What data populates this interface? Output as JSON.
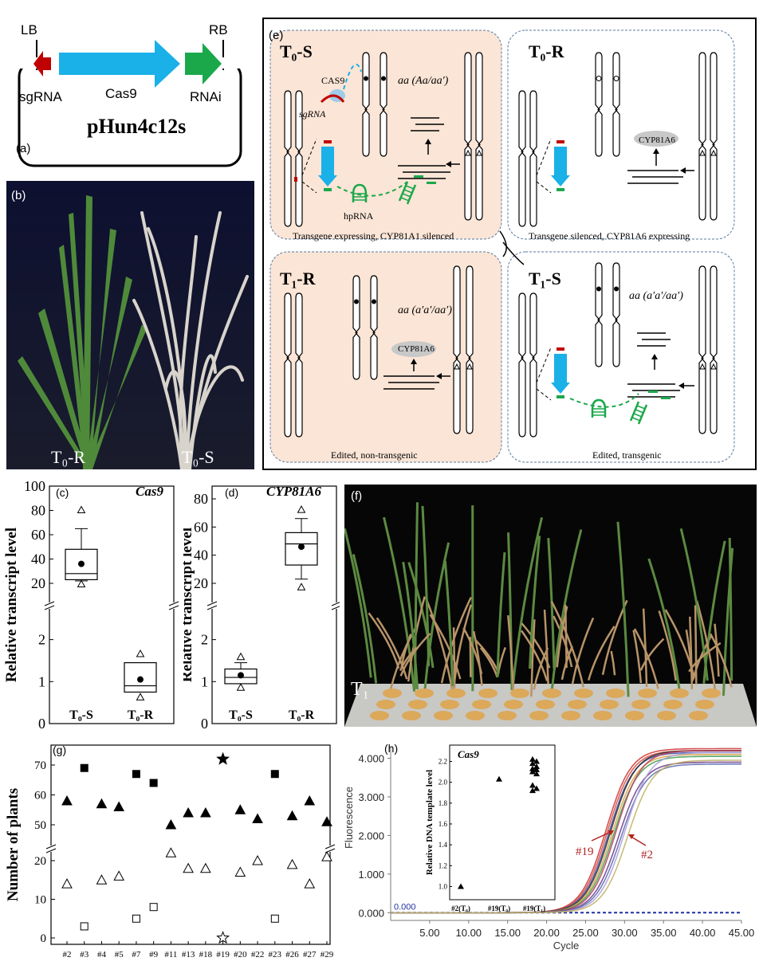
{
  "panel_a": {
    "label": "(a)",
    "lb": "LB",
    "rb": "RB",
    "sgrna": "sgRNA",
    "cas9": "Cas9",
    "rnai": "RNAi",
    "plasmid": "pHun4c12s",
    "colors": {
      "sgrna": "#c00000",
      "cas9": "#1ab0e8",
      "rnai": "#1aa84a"
    }
  },
  "panel_b": {
    "label": "(b)",
    "left_tag": "T₀-R",
    "right_tag": "T₀-S"
  },
  "panel_e": {
    "label": "(e)",
    "t0s": {
      "title": "T₀-S",
      "cas9": "CAS9",
      "sgrna": "sgRNA",
      "hprna": "hpRNA",
      "genotype": "aa (Aa/aa′)",
      "caption": "Transgene expressing, CYP81A1 silenced"
    },
    "t0r": {
      "title": "T₀-R",
      "protein": "CYP81A6",
      "caption": "Transgene silenced, CYP81A6 expressing"
    },
    "t1r": {
      "title": "T₁-R",
      "genotype": "aa (a′a′/aa′)",
      "protein": "CYP81A6",
      "caption": "Edited, non-transgenic"
    },
    "t1s": {
      "title": "T₁-S",
      "genotype": "aa (a′a′/aa′)",
      "caption": "Edited, transgenic"
    }
  },
  "panel_c": {
    "label": "(c)",
    "gene": "Cas9"
  },
  "panel_d": {
    "label": "(d)",
    "gene": "CYP81A6"
  },
  "panel_f": {
    "label": "(f)",
    "tag": "T₁"
  },
  "panel_g": {
    "label": "(g)"
  },
  "panel_h": {
    "label": "(h)",
    "inset_gene": "Cas9",
    "marker_a": "#19",
    "marker_b": "#2"
  },
  "chart_data": [
    {
      "id": "c",
      "type": "box",
      "title": "Cas9",
      "ylabel": "Relative transcript level",
      "categories": [
        "T₀-S",
        "T₀-R"
      ],
      "y_upper_ticks": [
        20,
        40,
        60,
        80,
        100
      ],
      "y_lower_ticks": [
        0,
        1,
        2
      ],
      "series": [
        {
          "category": "T₀-S",
          "q1": 23,
          "median": 28,
          "q3": 48,
          "whisker_low": 22,
          "whisker_high": 65,
          "mean": 36,
          "outliers": [
            80,
            19
          ]
        },
        {
          "category": "T₀-R",
          "q1": 0.75,
          "median": 0.9,
          "q3": 1.45,
          "whisker_low": 0.75,
          "whisker_high": 1.45,
          "mean": 1.05,
          "outliers": [
            1.65,
            0.62
          ]
        }
      ]
    },
    {
      "id": "d",
      "type": "box",
      "title": "CYP81A6",
      "ylabel": "Relative transcript level",
      "categories": [
        "T₀-S",
        "T₀-R"
      ],
      "y_upper_ticks": [
        20,
        40,
        60,
        80
      ],
      "y_lower_ticks": [
        0,
        1,
        2
      ],
      "series": [
        {
          "category": "T₀-S",
          "q1": 0.95,
          "median": 1.1,
          "q3": 1.3,
          "whisker_low": 0.95,
          "whisker_high": 1.45,
          "mean": 1.15,
          "outliers": [
            1.58,
            0.85
          ]
        },
        {
          "category": "T₀-R",
          "q1": 33,
          "median": 48,
          "q3": 56,
          "whisker_low": 23,
          "whisker_high": 66,
          "mean": 46,
          "outliers": [
            72,
            17
          ]
        }
      ]
    },
    {
      "id": "g",
      "type": "scatter",
      "ylabel": "Number of plants",
      "categories": [
        "#2",
        "#3",
        "#4",
        "#5",
        "#7",
        "#9",
        "#11",
        "#13",
        "#18",
        "#19",
        "#20",
        "#22",
        "#23",
        "#26",
        "#27",
        "#29"
      ],
      "y_upper_ticks": [
        50,
        60,
        70
      ],
      "y_lower_ticks": [
        0,
        10,
        20
      ],
      "series": [
        {
          "name": "upper",
          "values": [
            58,
            69,
            57,
            56,
            67,
            64,
            50,
            54,
            54,
            72,
            55,
            52,
            67,
            53,
            58,
            51
          ],
          "markers": [
            "tri",
            "sq",
            "tri",
            "tri",
            "sq",
            "sq",
            "tri",
            "tri",
            "tri",
            "star",
            "tri",
            "tri",
            "sq",
            "tri",
            "tri",
            "tri"
          ]
        },
        {
          "name": "lower",
          "values": [
            14,
            3,
            15,
            16,
            5,
            8,
            22,
            18,
            18,
            0,
            17,
            20,
            5,
            19,
            14,
            21
          ],
          "markers": [
            "otri",
            "osq",
            "otri",
            "otri",
            "osq",
            "osq",
            "otri",
            "otri",
            "otri",
            "ostar",
            "otri",
            "otri",
            "osq",
            "otri",
            "otri",
            "otri"
          ]
        }
      ]
    },
    {
      "id": "h",
      "type": "line",
      "xlabel": "Cycle",
      "ylabel": "Fluorescence",
      "x_ticks": [
        "5.00",
        "10.00",
        "15.00",
        "20.00",
        "25.00",
        "30.00",
        "35.00",
        "40.00",
        "45.00"
      ],
      "y_ticks": [
        "0.000",
        "1.000",
        "2.000",
        "3.000",
        "4.000"
      ],
      "threshold_label": "0.000",
      "xlim": [
        0,
        45
      ],
      "ylim": [
        -0.2,
        4.3
      ],
      "curve_midpoints": [
        27.6,
        27.8,
        28.0,
        28.2,
        28.4,
        28.6,
        28.9,
        29.2,
        29.5,
        30.0,
        30.4
      ],
      "curve_plateaus": [
        4.25,
        4.2,
        4.15,
        4.2,
        4.1,
        4.05,
        4.2,
        3.9,
        3.85,
        4.15,
        3.95
      ],
      "colors": [
        "#cc3333",
        "#d94a3a",
        "#3a4aa0",
        "#2c2c2c",
        "#d9a040",
        "#3c9c4c",
        "#bb3d5d",
        "#6a3a8a",
        "#5a6ab0",
        "#aaa0d8",
        "#c0b060"
      ],
      "inset": {
        "ylabel": "Relative DNA template level",
        "categories": [
          "#2(T₀)",
          "#19(T₀)",
          "#19(T₁)"
        ],
        "y_ticks": [
          "1.0",
          "1.2",
          "1.4",
          "1.6",
          "1.8",
          "2.0",
          "2.2"
        ],
        "values": [
          [
            1.0
          ],
          [
            2.03
          ],
          [
            2.22,
            2.2,
            2.18,
            2.15,
            2.13,
            2.12,
            2.1,
            2.08,
            1.97,
            1.94,
            1.92
          ]
        ]
      }
    }
  ]
}
